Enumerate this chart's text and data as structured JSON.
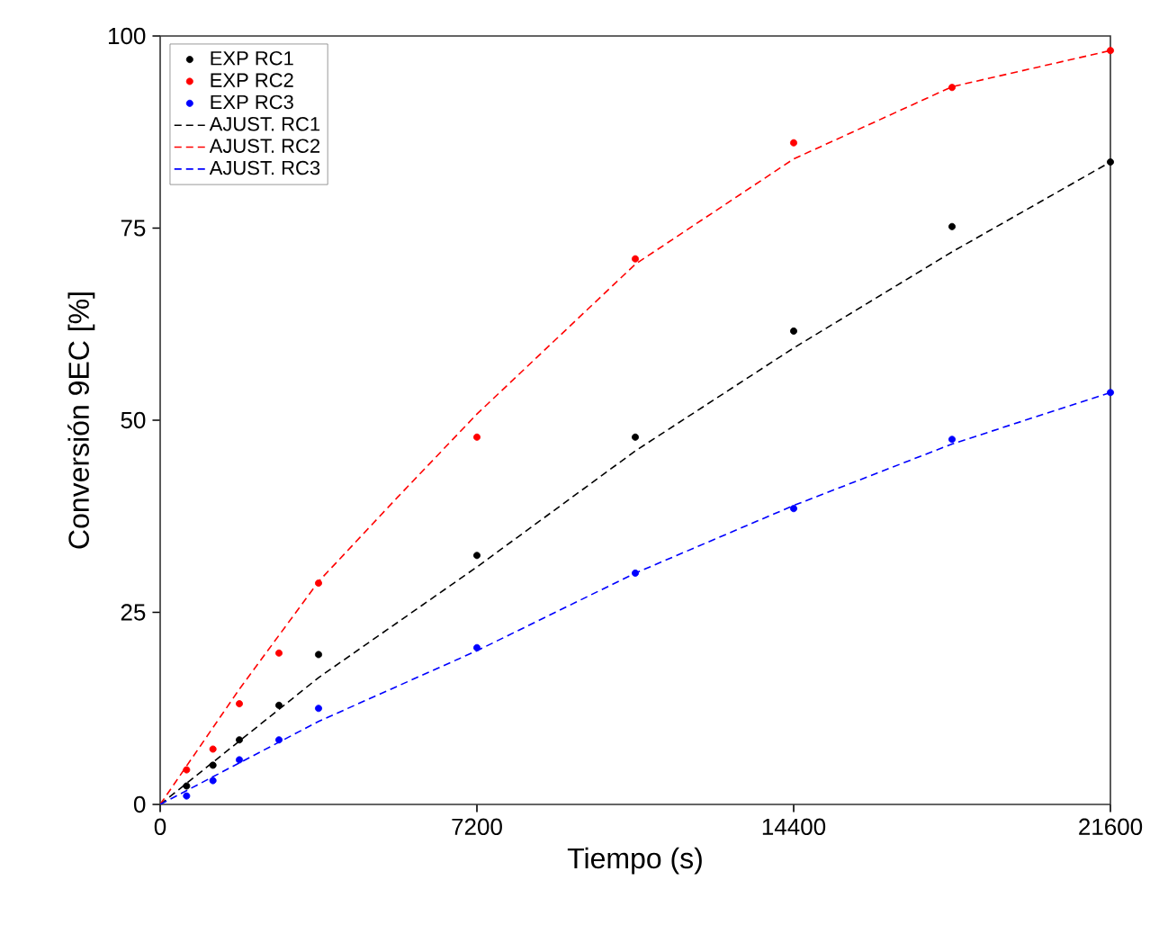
{
  "chart_data": {
    "type": "scatter",
    "xlabel": "Tiempo (s)",
    "ylabel": "Conversión 9EC [%]",
    "xlim": [
      0,
      21600
    ],
    "ylim": [
      0,
      100
    ],
    "xticks": [
      0,
      7200,
      14400,
      21600
    ],
    "yticks": [
      0,
      25,
      50,
      75,
      100
    ],
    "legend": "top left",
    "grid": false,
    "series": [
      {
        "name": "EXP RC1",
        "marker": "circle",
        "color": "#000000",
        "x": [
          600,
          1200,
          1800,
          2700,
          3600,
          7200,
          10800,
          14400,
          18000,
          21600
        ],
        "values": [
          2.4,
          5.1,
          8.4,
          12.9,
          19.5,
          32.4,
          47.8,
          61.6,
          75.2,
          83.6
        ]
      },
      {
        "name": "EXP RC2",
        "marker": "circle",
        "color": "#ff0000",
        "x": [
          600,
          1200,
          1800,
          2700,
          3600,
          7200,
          10800,
          14400,
          18000,
          21600
        ],
        "values": [
          4.5,
          7.2,
          13.1,
          19.7,
          28.8,
          47.8,
          71.0,
          86.1,
          93.3,
          98.1
        ]
      },
      {
        "name": "EXP RC3",
        "marker": "circle",
        "color": "#0000ff",
        "x": [
          600,
          1200,
          1800,
          2700,
          3600,
          7200,
          10800,
          14400,
          18000,
          21600
        ],
        "values": [
          1.1,
          3.1,
          5.8,
          8.4,
          12.5,
          20.4,
          30.1,
          38.5,
          47.5,
          53.6
        ]
      },
      {
        "name": "AJUST. RC1",
        "type": "line",
        "marker": "none",
        "line_style": "dashed",
        "color": "#000000",
        "x": [
          0,
          3600,
          7200,
          10800,
          14400,
          18000,
          21600
        ],
        "values": [
          0,
          16.5,
          30.9,
          46.0,
          59.4,
          71.9,
          83.6
        ]
      },
      {
        "name": "AJUST. RC2",
        "type": "line",
        "marker": "none",
        "line_style": "dashed",
        "color": "#ff0000",
        "x": [
          0,
          1800,
          3600,
          5400,
          7200,
          10800,
          14400,
          18000,
          21600
        ],
        "values": [
          0,
          15,
          29,
          40,
          50.8,
          70.3,
          84.0,
          93.4,
          98.1
        ]
      },
      {
        "name": "AJUST. RC3",
        "type": "line",
        "marker": "none",
        "line_style": "dashed",
        "color": "#0000ff",
        "x": [
          0,
          3600,
          7200,
          10800,
          14400,
          18000,
          21600
        ],
        "values": [
          0,
          10.8,
          20.0,
          30.1,
          38.9,
          46.9,
          53.6
        ]
      }
    ]
  }
}
